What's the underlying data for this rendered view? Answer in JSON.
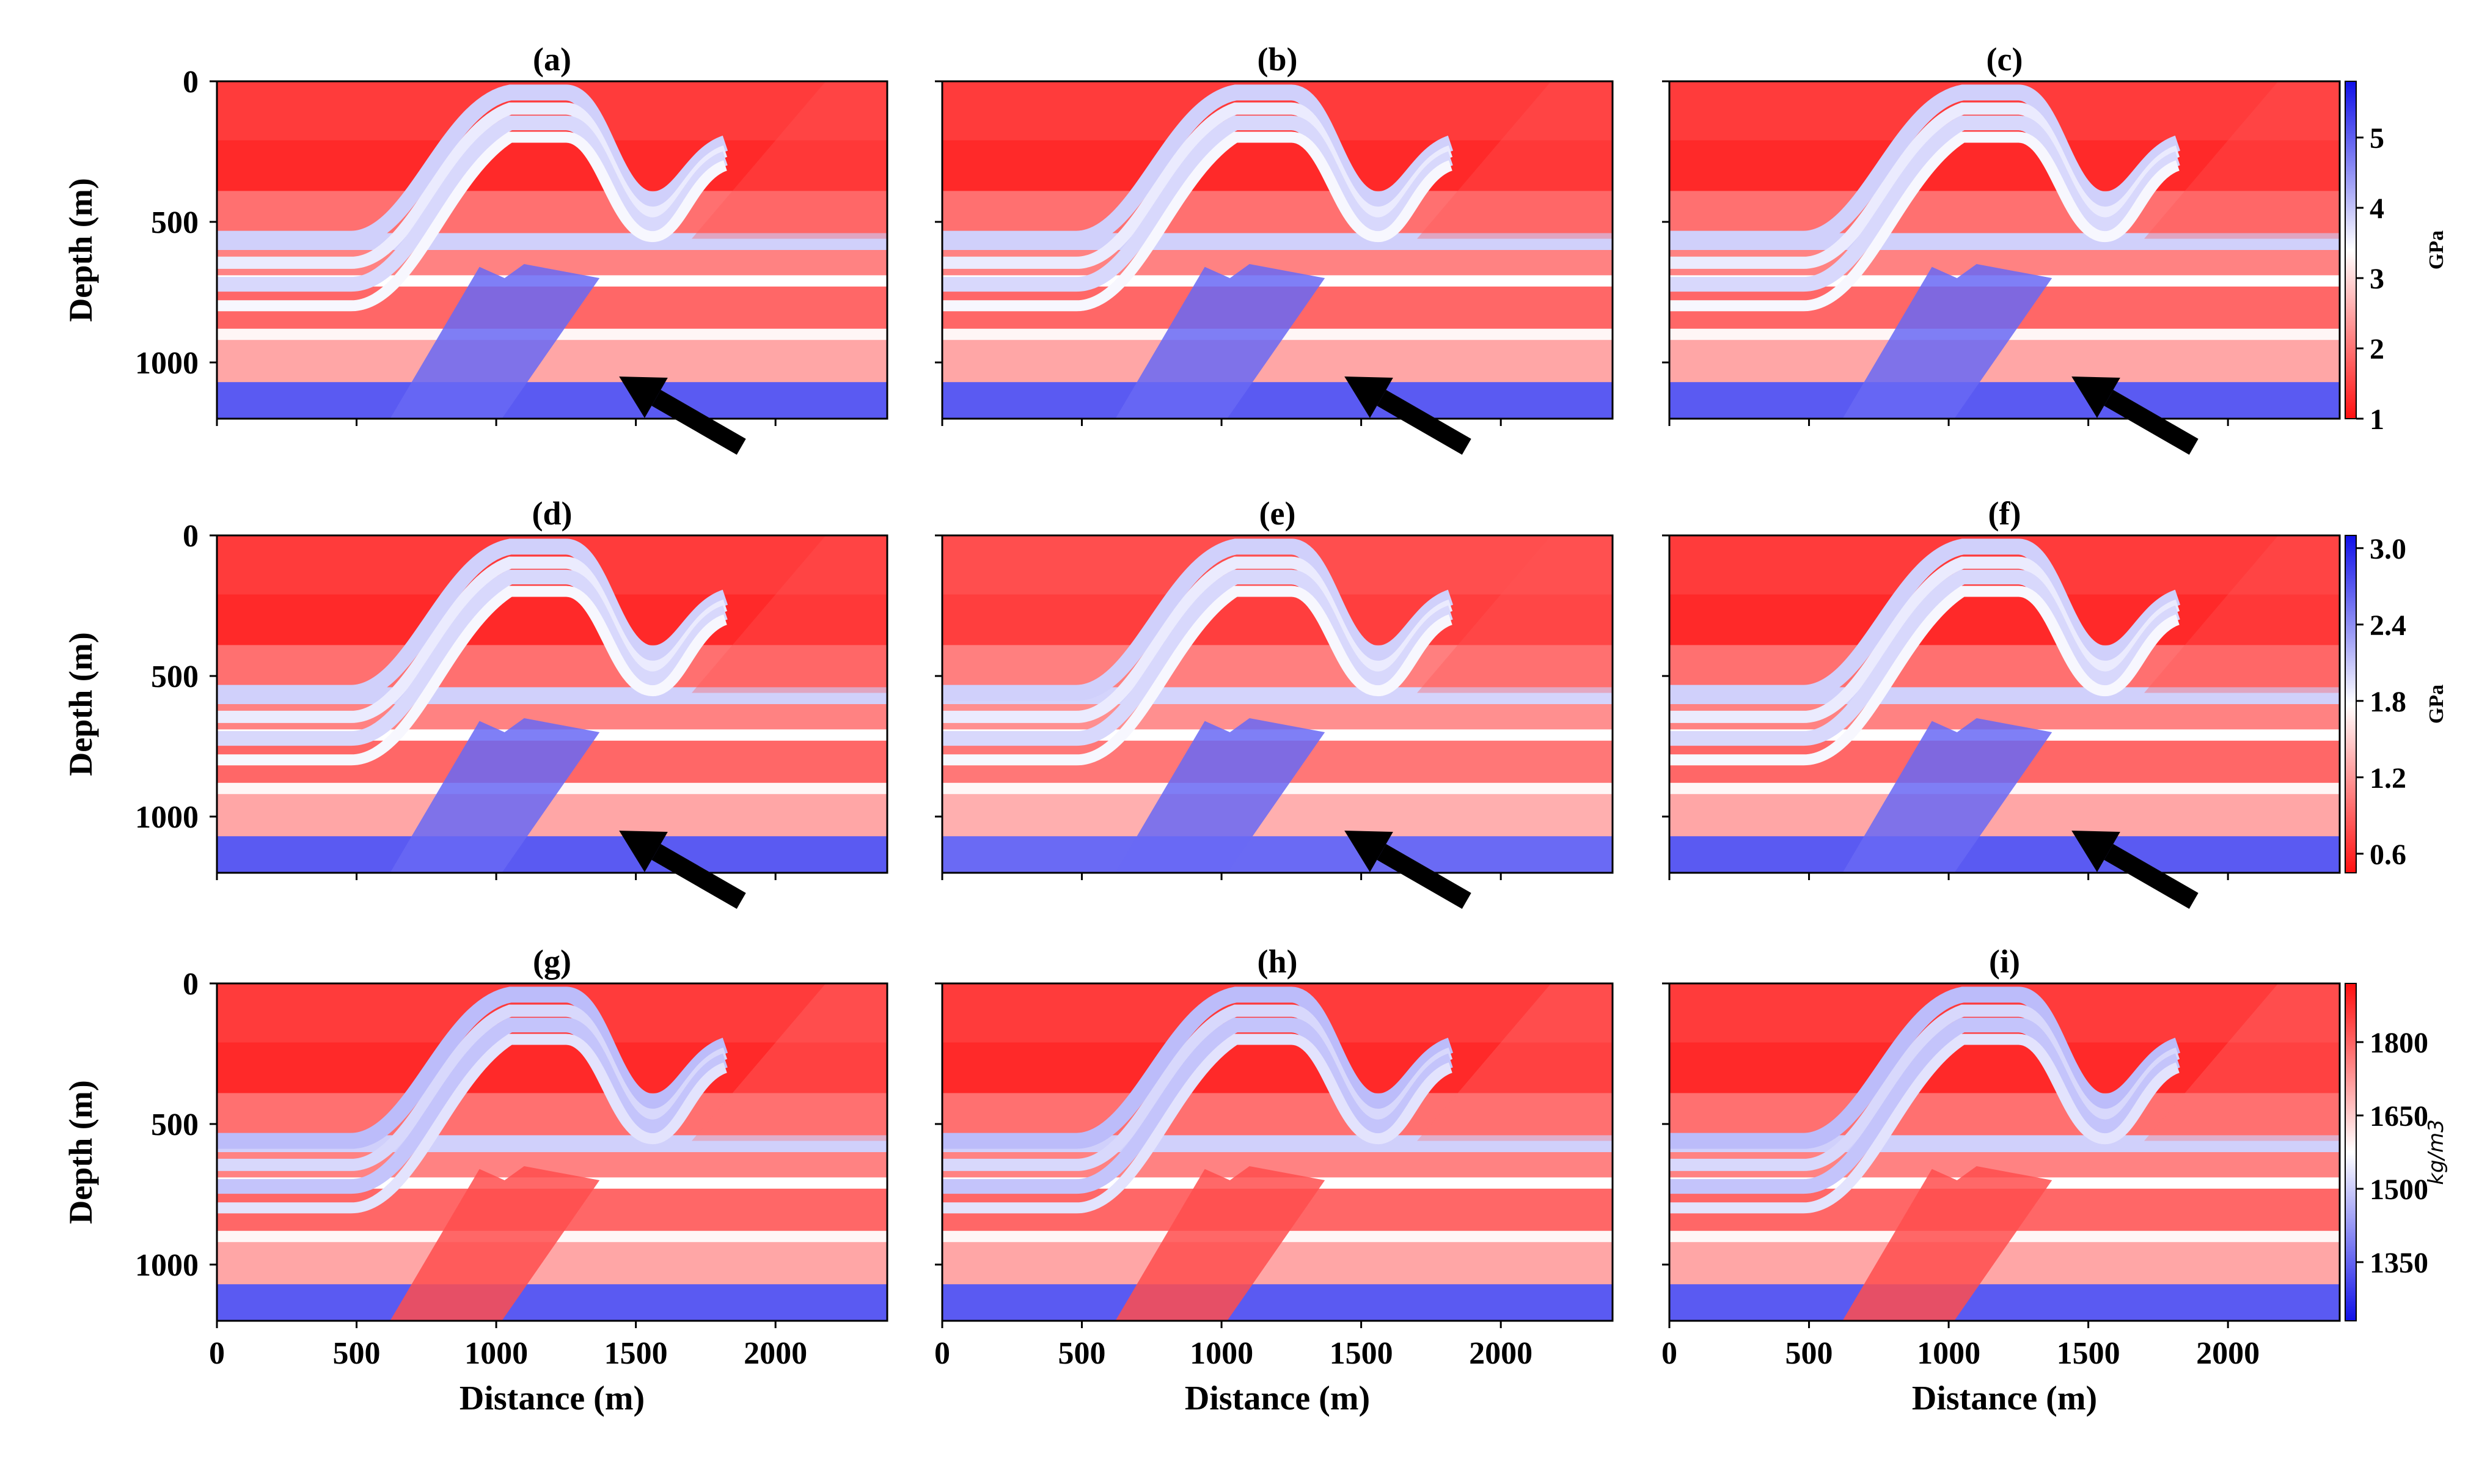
{
  "chart_data": {
    "type": "heatmap",
    "description_units": {
      "x": "m",
      "y": "m"
    },
    "x_range": [
      0,
      2400
    ],
    "y_range": [
      0,
      1200
    ],
    "x_ticks": [
      0,
      500,
      1000,
      1500,
      2000
    ],
    "x_tick_labels": [
      "0",
      "500",
      "1000",
      "1500",
      "2000"
    ],
    "y_ticks": [
      0,
      500,
      1000
    ],
    "y_tick_labels": [
      "0",
      "500",
      "1000"
    ],
    "xlabel": "Distance (m)",
    "ylabel": "Depth (m)",
    "rows": [
      {
        "panels": [
          "(a)",
          "(b)",
          "(c)"
        ],
        "colormap": "bwr_r",
        "colorbar": {
          "label": "GPa",
          "range": [
            1,
            5.8
          ],
          "ticks": [
            1,
            2,
            3,
            4,
            5
          ],
          "tick_labels": [
            "1",
            "2",
            "3",
            "4",
            "5"
          ]
        },
        "arrow_pointer": true
      },
      {
        "panels": [
          "(d)",
          "(e)",
          "(f)"
        ],
        "colormap": "bwr_r",
        "colorbar": {
          "label": "GPa",
          "range": [
            0.45,
            3.1
          ],
          "ticks": [
            0.6,
            1.2,
            1.8,
            2.4,
            3.0
          ],
          "tick_labels": [
            "0.6",
            "1.2",
            "1.8",
            "2.4",
            "3.0"
          ]
        },
        "arrow_pointer": true
      },
      {
        "panels": [
          "(g)",
          "(h)",
          "(i)"
        ],
        "colormap": "bwr",
        "colorbar": {
          "label": "kg/m3",
          "range": [
            1230,
            1920
          ],
          "ticks": [
            1350,
            1500,
            1650,
            1800
          ],
          "tick_labels": [
            "1350",
            "1500",
            "1650",
            "1800"
          ]
        },
        "arrow_pointer": false
      }
    ]
  },
  "colors": {
    "red": "#ff2020",
    "white": "#ffffff",
    "blue": "#3a3af0",
    "arrow": "#000000"
  }
}
